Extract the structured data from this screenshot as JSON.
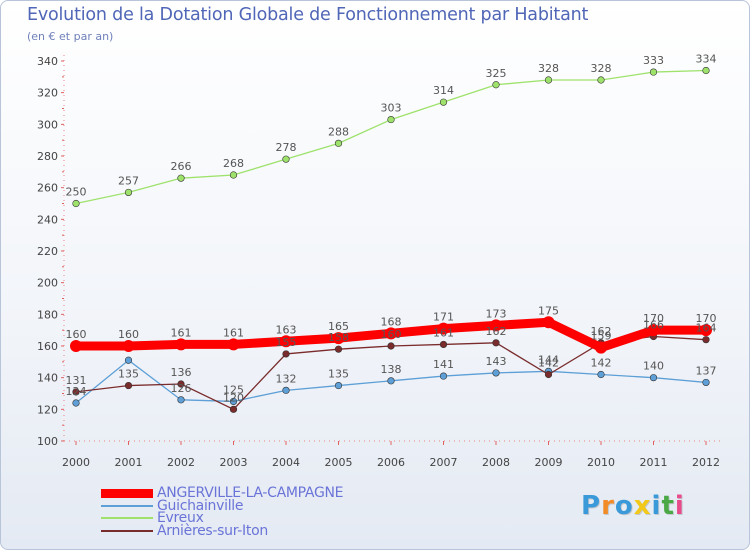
{
  "title": "Evolution de la Dotation Globale de Fonctionnement par Habitant",
  "subtitle": "(en € et par an)",
  "logo": {
    "text": "Proxiti",
    "colors": [
      "#3a9ad9",
      "#f28c28",
      "#3a9ad9",
      "#f2c81b",
      "#3a9ad9",
      "#4aa845",
      "#e84b8a"
    ]
  },
  "chart_data": {
    "type": "line",
    "title": "Evolution de la Dotation Globale de Fonctionnement par Habitant",
    "ylabel": "(en € et par an)",
    "xlabel": "",
    "ylim": [
      100,
      340
    ],
    "yticks": [
      100,
      120,
      140,
      160,
      180,
      200,
      220,
      240,
      260,
      280,
      300,
      320,
      340
    ],
    "grid": false,
    "legend_position": "bottom-left",
    "categories": [
      "2000",
      "2001",
      "2002",
      "2003",
      "2004",
      "2005",
      "2006",
      "2007",
      "2008",
      "2009",
      "2010",
      "2011",
      "2012"
    ],
    "series": [
      {
        "name": "ANGERVILLE-LA-CAMPAGNE",
        "color": "#ff0000",
        "emphasis": true,
        "values": [
          160,
          160,
          161,
          161,
          163,
          165,
          168,
          171,
          173,
          175,
          159,
          170,
          170
        ],
        "labels": [
          "160",
          "160",
          "161",
          "161",
          "163",
          "165",
          "168",
          "171",
          "173",
          "175",
          "159",
          "170",
          "170"
        ]
      },
      {
        "name": "Guichainville",
        "color": "#5d9fd6",
        "emphasis": false,
        "values": [
          124,
          151,
          126,
          125,
          132,
          135,
          138,
          141,
          143,
          144,
          142,
          140,
          137
        ],
        "labels": [
          "124",
          "",
          "126",
          "125",
          "132",
          "135",
          "138",
          "141",
          "143",
          "144",
          "142",
          "140",
          "137"
        ]
      },
      {
        "name": "Evreux",
        "color": "#9ee26c",
        "emphasis": false,
        "values": [
          250,
          257,
          266,
          268,
          278,
          288,
          303,
          314,
          325,
          328,
          328,
          333,
          334
        ],
        "labels": [
          "250",
          "257",
          "266",
          "268",
          "278",
          "288",
          "303",
          "314",
          "325",
          "328",
          "328",
          "333",
          "334"
        ]
      },
      {
        "name": "Arnières-sur-Iton",
        "color": "#7a2c2c",
        "emphasis": false,
        "values": [
          131,
          135,
          136,
          120,
          155,
          158,
          160,
          161,
          162,
          142,
          162,
          166,
          164
        ],
        "labels": [
          "131",
          "135",
          "136",
          "120",
          "155",
          "158",
          "160",
          "161",
          "162",
          "142",
          "162",
          "166",
          "164"
        ]
      }
    ]
  }
}
